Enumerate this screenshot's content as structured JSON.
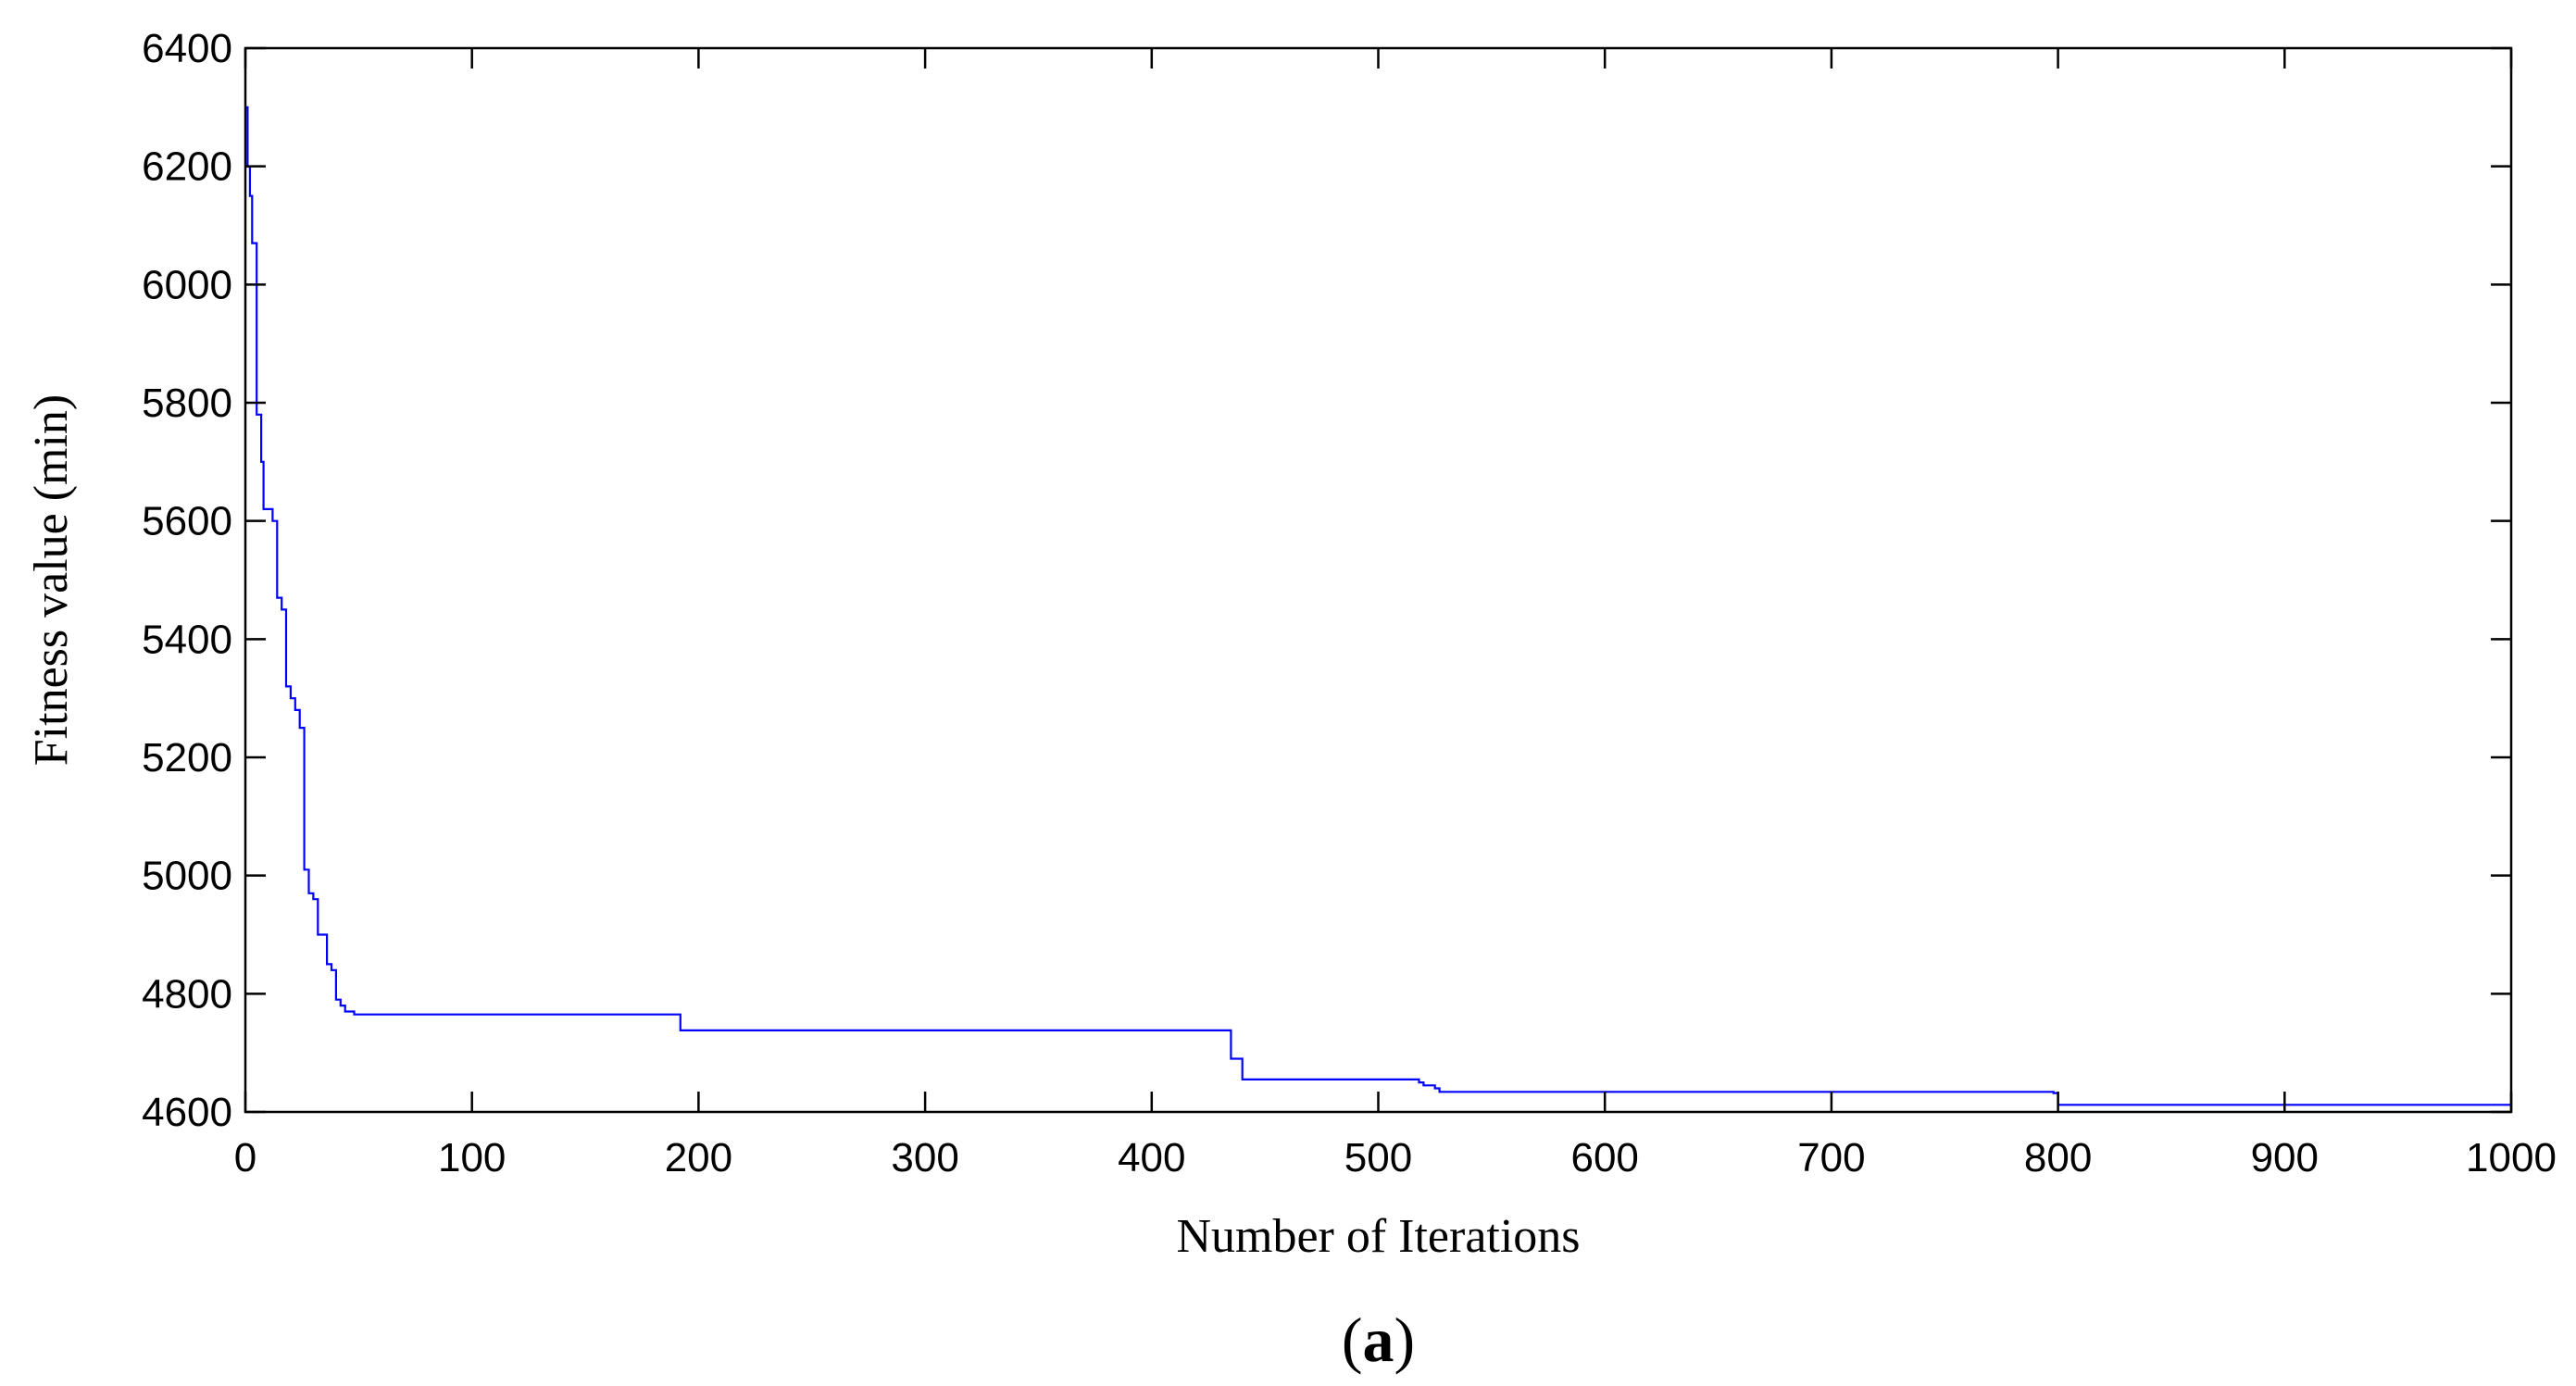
{
  "chart_data": {
    "type": "line",
    "title": "",
    "xlabel": "Number of Iterations",
    "ylabel": "Fitness value (min)",
    "panel_label": {
      "open": "(",
      "letter": "a",
      "close": ")"
    },
    "xlim": [
      0,
      1000
    ],
    "ylim": [
      4600,
      6400
    ],
    "xticks": [
      0,
      100,
      200,
      300,
      400,
      500,
      600,
      700,
      800,
      900,
      1000
    ],
    "yticks": [
      4600,
      4800,
      5000,
      5200,
      5400,
      5600,
      5800,
      6000,
      6200,
      6400
    ],
    "grid": false,
    "legend": "none",
    "line_color": "#0000ff",
    "step": true,
    "series": [
      {
        "x": [
          0,
          1,
          2,
          3,
          5,
          7,
          8,
          10,
          12,
          14,
          16,
          18,
          20,
          22,
          24,
          26,
          28,
          30,
          32,
          34,
          36,
          38,
          40,
          42,
          44,
          46,
          48,
          50,
          190,
          192,
          433,
          435,
          440,
          442,
          518,
          520,
          525,
          527,
          530,
          798,
          800,
          1000
        ],
        "y": [
          6300,
          6200,
          6150,
          6070,
          5780,
          5700,
          5620,
          5620,
          5600,
          5470,
          5450,
          5320,
          5300,
          5280,
          5250,
          5010,
          4970,
          4960,
          4900,
          4900,
          4850,
          4840,
          4790,
          4780,
          4770,
          4770,
          4765,
          4765,
          4765,
          4738,
          4738,
          4690,
          4655,
          4655,
          4650,
          4645,
          4640,
          4634,
          4634,
          4632,
          4612,
          4612
        ]
      }
    ]
  }
}
